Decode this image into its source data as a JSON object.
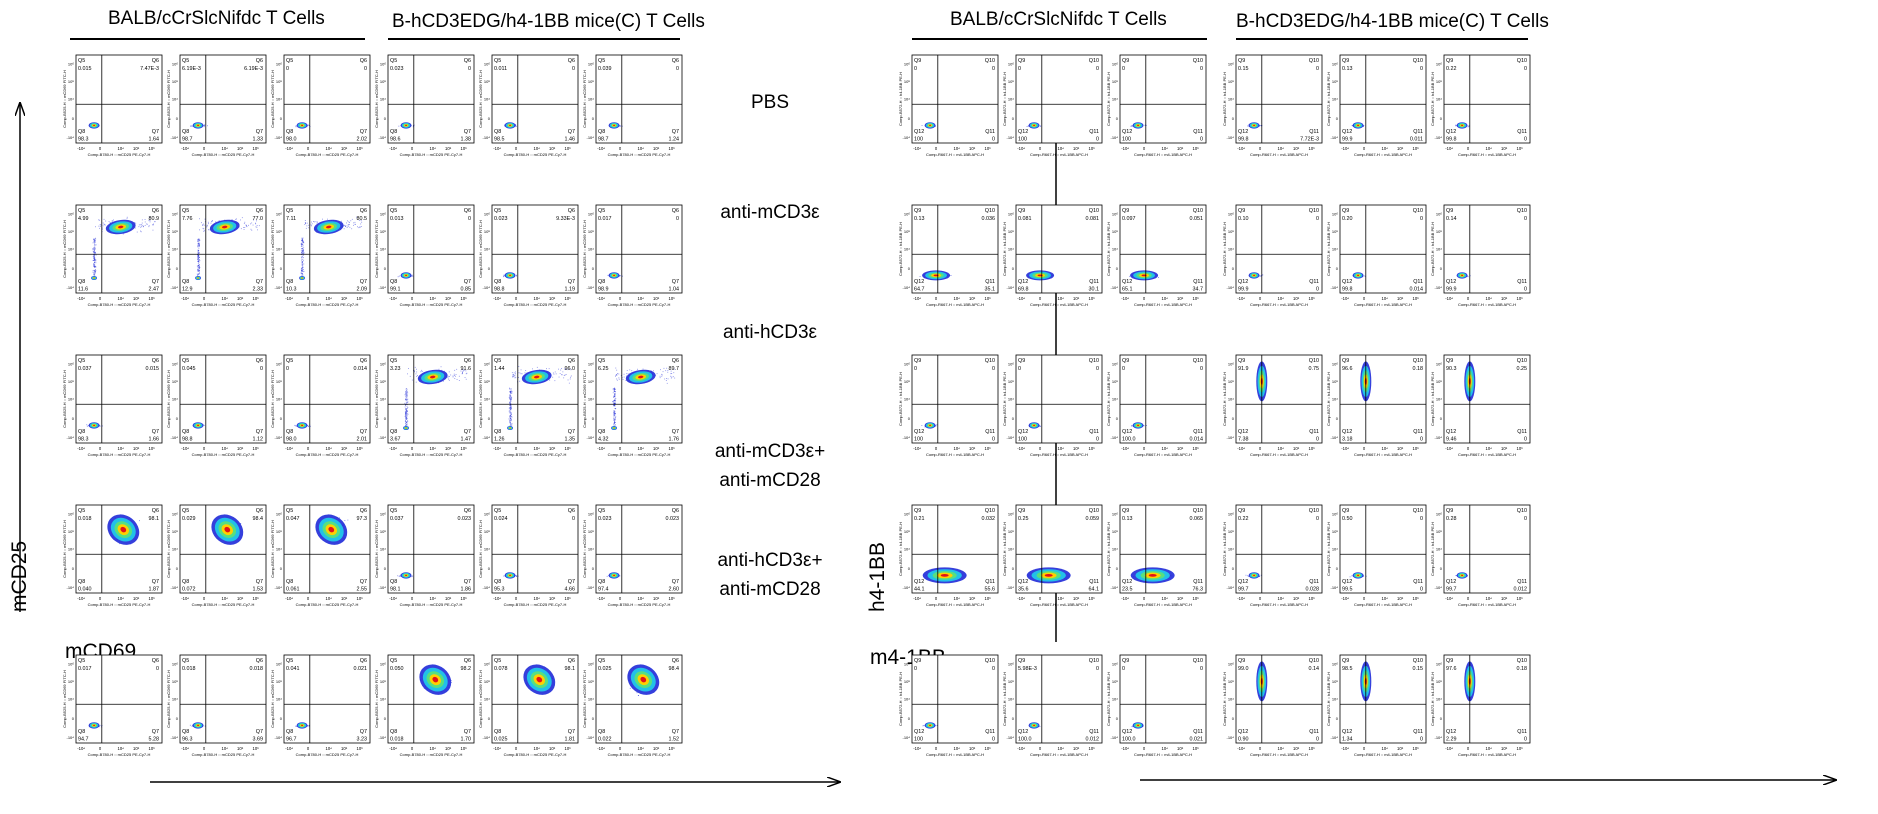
{
  "headers": {
    "left_group1": "BALB/cCrSlcNifdc T Cells",
    "left_group2": "B-hCD3EDG/h4-1BB mice(C)  T Cells",
    "right_group1": "BALB/cCrSlcNifdc T Cells",
    "right_group2": "B-hCD3EDG/h4-1BB mice(C) T Cells"
  },
  "conditions": [
    [
      "PBS"
    ],
    [
      "anti-mCD3ε"
    ],
    [
      "anti-hCD3ε"
    ],
    [
      "anti-mCD3ε+",
      "anti-mCD28"
    ],
    [
      "anti-hCD3ε+",
      "anti-mCD28"
    ]
  ],
  "axes": {
    "left_y": "mCD25",
    "left_x": "mCD69",
    "right_y": "h4-1BB",
    "right_x": "m4-1BB"
  },
  "colors": {
    "text": "#000000",
    "density_low": "#1f2ad8",
    "density_mid": "#22c8e8",
    "density_hi": "#ffd000",
    "density_peak": "#e0121a"
  },
  "chart_data": [
    {
      "type": "scatter",
      "title": "",
      "xlabel": "mCD69",
      "ylabel": "mCD25",
      "plot_xlabel": "Comp-B780-H :: mCD25 PE-Cy7-H",
      "plot_ylabel": "Comp-B525-H :: mCD69 FITC-H",
      "tick_labels": [
        "-10⁴",
        "0",
        "10⁴",
        "10⁵",
        "10⁶"
      ],
      "gate_names": [
        "Q5",
        "Q6",
        "Q7",
        "Q8"
      ],
      "rows": [
        [
          {
            "Q5": "0.015",
            "Q6": "7.47E-3",
            "Q7": "1.64",
            "Q8": "98.3",
            "pattern": "neg"
          },
          {
            "Q5": "6.19E-3",
            "Q6": "6.19E-3",
            "Q7": "1.33",
            "Q8": "98.7",
            "pattern": "neg"
          },
          {
            "Q5": "0",
            "Q6": "0",
            "Q7": "2.02",
            "Q8": "98.0",
            "pattern": "neg"
          },
          {
            "Q5": "0.023",
            "Q6": "0",
            "Q7": "1.38",
            "Q8": "98.6",
            "pattern": "neg"
          },
          {
            "Q5": "0.011",
            "Q6": "0",
            "Q7": "1.46",
            "Q8": "98.5",
            "pattern": "neg"
          },
          {
            "Q5": "0.039",
            "Q6": "0",
            "Q7": "1.24",
            "Q8": "98.7",
            "pattern": "neg"
          }
        ],
        [
          {
            "Q5": "4.99",
            "Q6": "80.9",
            "Q7": "2.47",
            "Q8": "11.6",
            "pattern": "act"
          },
          {
            "Q5": "7.76",
            "Q6": "77.0",
            "Q7": "2.33",
            "Q8": "12.9",
            "pattern": "act"
          },
          {
            "Q5": "7.11",
            "Q6": "80.5",
            "Q7": "2.09",
            "Q8": "10.3",
            "pattern": "act"
          },
          {
            "Q5": "0.013",
            "Q6": "0",
            "Q7": "0.85",
            "Q8": "99.1",
            "pattern": "neg"
          },
          {
            "Q5": "0.023",
            "Q6": "9.33E-3",
            "Q7": "1.19",
            "Q8": "98.8",
            "pattern": "neg"
          },
          {
            "Q5": "0.017",
            "Q6": "0",
            "Q7": "1.04",
            "Q8": "98.9",
            "pattern": "neg"
          }
        ],
        [
          {
            "Q5": "0.037",
            "Q6": "0.015",
            "Q7": "1.66",
            "Q8": "98.3",
            "pattern": "neg"
          },
          {
            "Q5": "0.045",
            "Q6": "0",
            "Q7": "1.12",
            "Q8": "98.8",
            "pattern": "neg"
          },
          {
            "Q5": "0",
            "Q6": "0.014",
            "Q7": "2.01",
            "Q8": "98.0",
            "pattern": "neg"
          },
          {
            "Q5": "3.23",
            "Q6": "91.6",
            "Q7": "1.47",
            "Q8": "3.67",
            "pattern": "act"
          },
          {
            "Q5": "1.44",
            "Q6": "96.0",
            "Q7": "1.35",
            "Q8": "1.26",
            "pattern": "act"
          },
          {
            "Q5": "6.25",
            "Q6": "89.7",
            "Q7": "1.76",
            "Q8": "4.32",
            "pattern": "act"
          }
        ],
        [
          {
            "Q5": "0.018",
            "Q6": "98.1",
            "Q7": "1.87",
            "Q8": "0.040",
            "pattern": "strong"
          },
          {
            "Q5": "0.029",
            "Q6": "98.4",
            "Q7": "1.53",
            "Q8": "0.072",
            "pattern": "strong"
          },
          {
            "Q5": "0.047",
            "Q6": "97.3",
            "Q7": "2.55",
            "Q8": "0.061",
            "pattern": "strong"
          },
          {
            "Q5": "0.037",
            "Q6": "0.023",
            "Q7": "1.86",
            "Q8": "98.1",
            "pattern": "neg"
          },
          {
            "Q5": "0.024",
            "Q6": "0",
            "Q7": "4.66",
            "Q8": "95.3",
            "pattern": "neg"
          },
          {
            "Q5": "0.023",
            "Q6": "0.023",
            "Q7": "2.60",
            "Q8": "97.4",
            "pattern": "neg"
          }
        ],
        [
          {
            "Q5": "0.017",
            "Q6": "0",
            "Q7": "5.28",
            "Q8": "94.7",
            "pattern": "neg"
          },
          {
            "Q5": "0.018",
            "Q6": "0.018",
            "Q7": "3.69",
            "Q8": "96.3",
            "pattern": "neg"
          },
          {
            "Q5": "0.041",
            "Q6": "0.021",
            "Q7": "3.23",
            "Q8": "96.7",
            "pattern": "neg"
          },
          {
            "Q5": "0.050",
            "Q6": "98.2",
            "Q7": "1.70",
            "Q8": "0.018",
            "pattern": "strong"
          },
          {
            "Q5": "0.078",
            "Q6": "98.1",
            "Q7": "1.81",
            "Q8": "0.025",
            "pattern": "strong"
          },
          {
            "Q5": "0.025",
            "Q6": "98.4",
            "Q7": "1.52",
            "Q8": "0.022",
            "pattern": "strong"
          }
        ]
      ]
    },
    {
      "type": "scatter",
      "title": "",
      "xlabel": "m4-1BB",
      "ylabel": "h4-1BB",
      "plot_xlabel": "Comp-R667-H :: m4-1BB APC-H",
      "plot_ylabel": "Comp-B572-H :: h4-1BB PE-H",
      "tick_labels": [
        "-10⁴",
        "0",
        "10⁴",
        "10⁵",
        "10⁶"
      ],
      "gate_names": [
        "Q9",
        "Q10",
        "Q11",
        "Q12"
      ],
      "rows": [
        [
          {
            "Q9": "0",
            "Q10": "0",
            "Q11": "0",
            "Q12": "100",
            "pattern": "neg"
          },
          {
            "Q9": "0",
            "Q10": "0",
            "Q11": "0",
            "Q12": "100",
            "pattern": "neg"
          },
          {
            "Q9": "0",
            "Q10": "0",
            "Q11": "0",
            "Q12": "100",
            "pattern": "neg"
          },
          {
            "Q9": "0.15",
            "Q10": "0",
            "Q11": "7.72E-3",
            "Q12": "99.8",
            "pattern": "neg"
          },
          {
            "Q9": "0.13",
            "Q10": "0",
            "Q11": "0.011",
            "Q12": "99.9",
            "pattern": "neg"
          },
          {
            "Q9": "0.22",
            "Q10": "0",
            "Q11": "0",
            "Q12": "99.8",
            "pattern": "neg"
          }
        ],
        [
          {
            "Q9": "0.13",
            "Q10": "0.036",
            "Q11": "35.1",
            "Q12": "64.7",
            "pattern": "horiz"
          },
          {
            "Q9": "0.081",
            "Q10": "0.081",
            "Q11": "30.1",
            "Q12": "69.8",
            "pattern": "horiz"
          },
          {
            "Q9": "0.097",
            "Q10": "0.051",
            "Q11": "34.7",
            "Q12": "65.1",
            "pattern": "horiz"
          },
          {
            "Q9": "0.10",
            "Q10": "0",
            "Q11": "0",
            "Q12": "99.9",
            "pattern": "neg"
          },
          {
            "Q9": "0.20",
            "Q10": "0",
            "Q11": "0.014",
            "Q12": "99.8",
            "pattern": "neg"
          },
          {
            "Q9": "0.14",
            "Q10": "0",
            "Q11": "0",
            "Q12": "99.9",
            "pattern": "neg"
          }
        ],
        [
          {
            "Q9": "0",
            "Q10": "0",
            "Q11": "0",
            "Q12": "100",
            "pattern": "neg"
          },
          {
            "Q9": "0",
            "Q10": "0",
            "Q11": "0",
            "Q12": "100",
            "pattern": "neg"
          },
          {
            "Q9": "0",
            "Q10": "0",
            "Q11": "0.014",
            "Q12": "100.0",
            "pattern": "neg"
          },
          {
            "Q9": "91.9",
            "Q10": "0.75",
            "Q11": "0",
            "Q12": "7.38",
            "pattern": "vert"
          },
          {
            "Q9": "96.6",
            "Q10": "0.18",
            "Q11": "0",
            "Q12": "3.18",
            "pattern": "vert"
          },
          {
            "Q9": "90.3",
            "Q10": "0.25",
            "Q11": "0",
            "Q12": "9.46",
            "pattern": "vert"
          }
        ],
        [
          {
            "Q9": "0.21",
            "Q10": "0.032",
            "Q11": "55.6",
            "Q12": "44.1",
            "pattern": "horiz2"
          },
          {
            "Q9": "0.25",
            "Q10": "0.059",
            "Q11": "64.1",
            "Q12": "35.6",
            "pattern": "horiz2"
          },
          {
            "Q9": "0.13",
            "Q10": "0.065",
            "Q11": "76.3",
            "Q12": "23.5",
            "pattern": "horiz2"
          },
          {
            "Q9": "0.22",
            "Q10": "0",
            "Q11": "0.028",
            "Q12": "99.7",
            "pattern": "neg"
          },
          {
            "Q9": "0.50",
            "Q10": "0",
            "Q11": "0",
            "Q12": "99.5",
            "pattern": "neg"
          },
          {
            "Q9": "0.28",
            "Q10": "0",
            "Q11": "0.012",
            "Q12": "99.7",
            "pattern": "neg"
          }
        ],
        [
          {
            "Q9": "0",
            "Q10": "0",
            "Q11": "0",
            "Q12": "100",
            "pattern": "neg"
          },
          {
            "Q9": "5.98E-3",
            "Q10": "0",
            "Q11": "0.012",
            "Q12": "100.0",
            "pattern": "neg"
          },
          {
            "Q9": "0",
            "Q10": "0",
            "Q11": "0.021",
            "Q12": "100.0",
            "pattern": "neg"
          },
          {
            "Q9": "99.0",
            "Q10": "0.14",
            "Q11": "0",
            "Q12": "0.90",
            "pattern": "vert"
          },
          {
            "Q9": "98.5",
            "Q10": "0.15",
            "Q11": "0",
            "Q12": "1.34",
            "pattern": "vert"
          },
          {
            "Q9": "97.6",
            "Q10": "0.18",
            "Q11": "0",
            "Q12": "2.29",
            "pattern": "vert"
          }
        ]
      ]
    }
  ]
}
